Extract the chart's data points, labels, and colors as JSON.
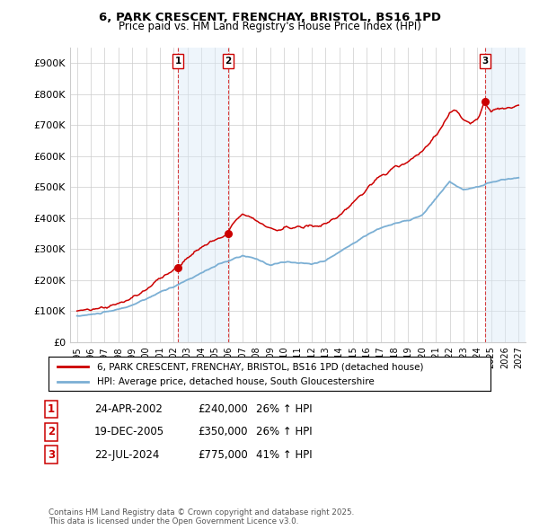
{
  "title": "6, PARK CRESCENT, FRENCHAY, BRISTOL, BS16 1PD",
  "subtitle": "Price paid vs. HM Land Registry's House Price Index (HPI)",
  "legend_line1": "6, PARK CRESCENT, FRENCHAY, BRISTOL, BS16 1PD (detached house)",
  "legend_line2": "HPI: Average price, detached house, South Gloucestershire",
  "footnote": "Contains HM Land Registry data © Crown copyright and database right 2025.\nThis data is licensed under the Open Government Licence v3.0.",
  "transactions": [
    {
      "num": 1,
      "date": "24-APR-2002",
      "price": 240000,
      "hpi_change": "26% ↑ HPI",
      "x_year": 2002.31
    },
    {
      "num": 2,
      "date": "19-DEC-2005",
      "price": 350000,
      "hpi_change": "26% ↑ HPI",
      "x_year": 2005.97
    },
    {
      "num": 3,
      "date": "22-JUL-2024",
      "price": 775000,
      "hpi_change": "41% ↑ HPI",
      "x_year": 2024.56
    }
  ],
  "ylim": [
    0,
    950000
  ],
  "xlim": [
    1994.5,
    2027.5
  ],
  "yticks": [
    0,
    100000,
    200000,
    300000,
    400000,
    500000,
    600000,
    700000,
    800000,
    900000
  ],
  "ytick_labels": [
    "£0",
    "£100K",
    "£200K",
    "£300K",
    "£400K",
    "£500K",
    "£600K",
    "£700K",
    "£800K",
    "£900K"
  ],
  "xticks": [
    1995,
    1996,
    1997,
    1998,
    1999,
    2000,
    2001,
    2002,
    2003,
    2004,
    2005,
    2006,
    2007,
    2008,
    2009,
    2010,
    2011,
    2012,
    2013,
    2014,
    2015,
    2016,
    2017,
    2018,
    2019,
    2020,
    2021,
    2022,
    2023,
    2024,
    2025,
    2026,
    2027
  ],
  "red_color": "#cc0000",
  "blue_color": "#7bafd4",
  "shade_color": "#daeaf7",
  "grid_color": "#cccccc",
  "background_color": "#ffffff",
  "shade_alpha": 0.45
}
